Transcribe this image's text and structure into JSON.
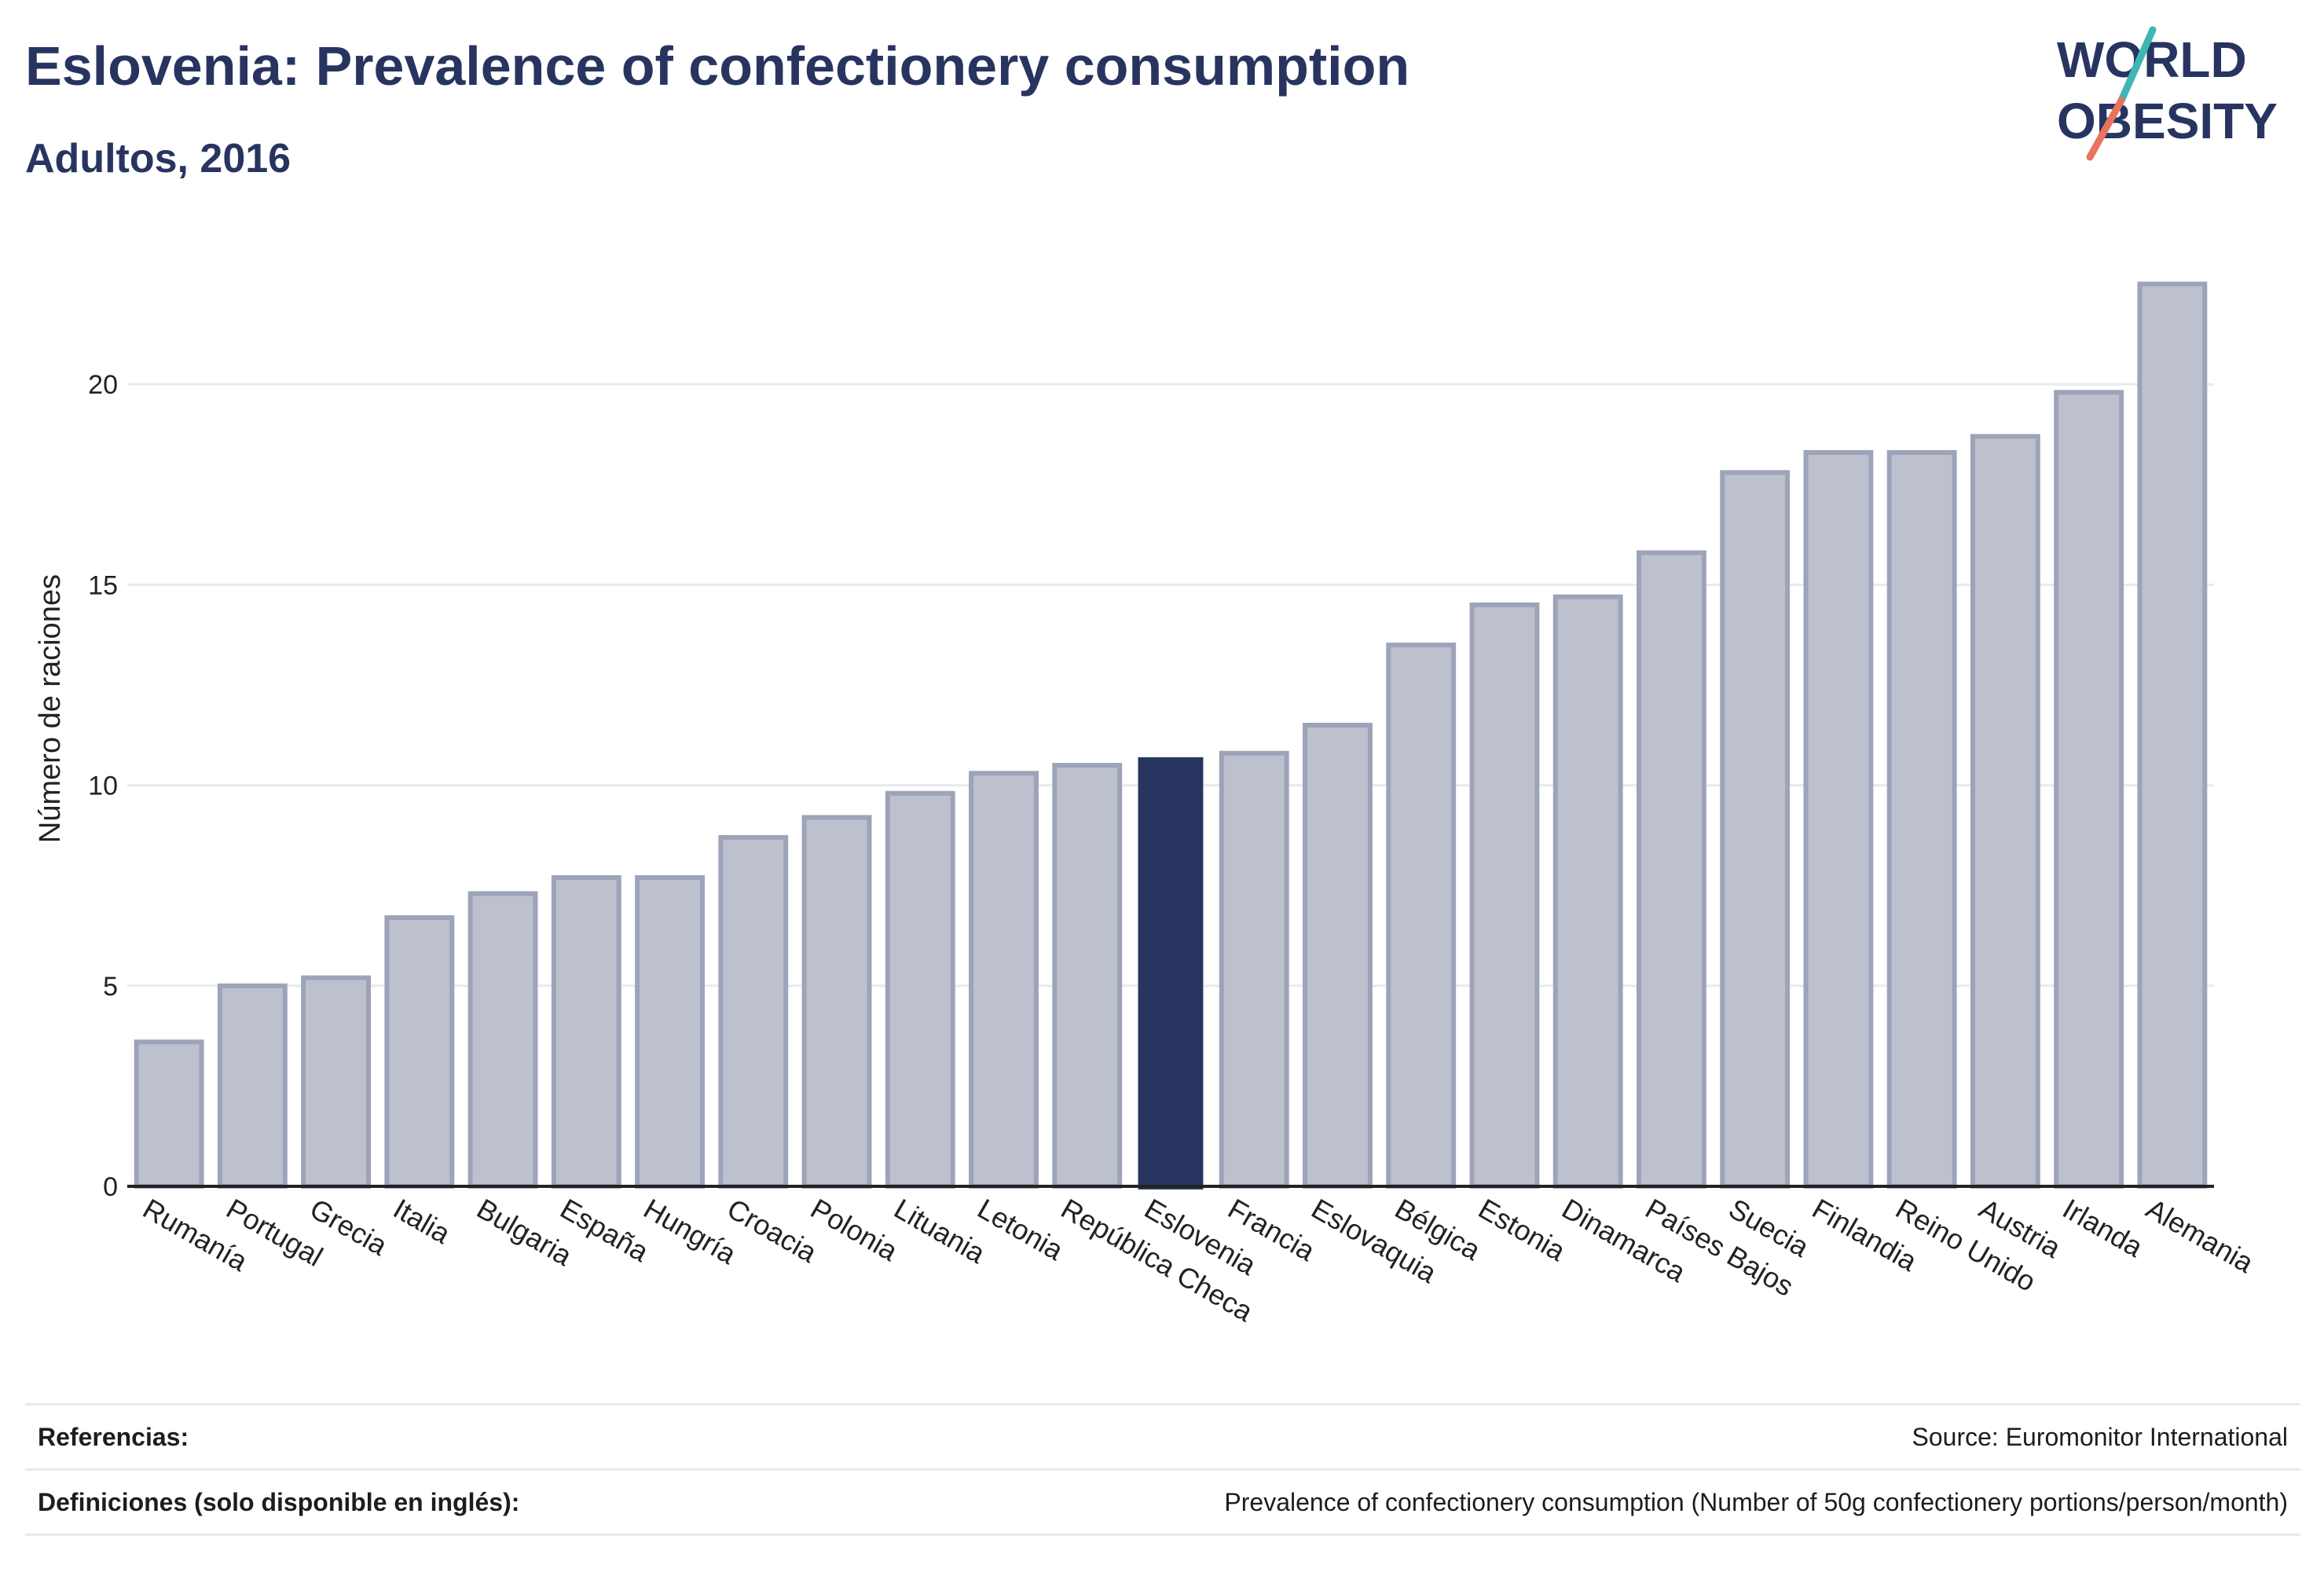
{
  "header": {
    "title": "Eslovenia: Prevalence of confectionery consumption",
    "subtitle": "Adultos, 2016"
  },
  "logo": {
    "line1": "WORLD",
    "line2": "OBESITY"
  },
  "colors": {
    "highlight": "#283460",
    "bar_fill": "#bdc1ce",
    "bar_stroke": "#9da3b8",
    "grid": "#e8eaf0",
    "logo_teal": "#3fb6b4",
    "logo_coral": "#e8735f"
  },
  "chart_data": {
    "type": "bar",
    "title": "Eslovenia: Prevalence of confectionery consumption",
    "subtitle": "Adultos, 2016",
    "ylabel": "Número de raciones",
    "xlabel": "",
    "ylim": [
      0,
      23
    ],
    "yticks": [
      0,
      5,
      10,
      15,
      20
    ],
    "grid": true,
    "highlight": "Eslovenia",
    "categories": [
      "Rumanía",
      "Portugal",
      "Grecia",
      "Italia",
      "Bulgaria",
      "España",
      "Hungría",
      "Croacia",
      "Polonia",
      "Lituania",
      "Letonia",
      "República Checa",
      "Eslovenia",
      "Francia",
      "Eslovaquia",
      "Bélgica",
      "Estonia",
      "Dinamarca",
      "Países Bajos",
      "Suecia",
      "Finlandia",
      "Reino Unido",
      "Austria",
      "Irlanda",
      "Alemania"
    ],
    "values": [
      3.6,
      5.0,
      5.2,
      6.7,
      7.3,
      7.7,
      7.7,
      8.7,
      9.2,
      9.8,
      10.3,
      10.5,
      10.7,
      10.8,
      11.5,
      13.5,
      14.5,
      14.7,
      15.8,
      17.8,
      18.3,
      18.3,
      18.7,
      19.8,
      22.5
    ]
  },
  "footer": {
    "references_label": "Referencias:",
    "references_value": "Source: Euromonitor International",
    "definitions_label": "Definiciones (solo disponible en inglés):",
    "definitions_value": "Prevalence of confectionery consumption (Number of 50g confectionery portions/person/month)"
  }
}
